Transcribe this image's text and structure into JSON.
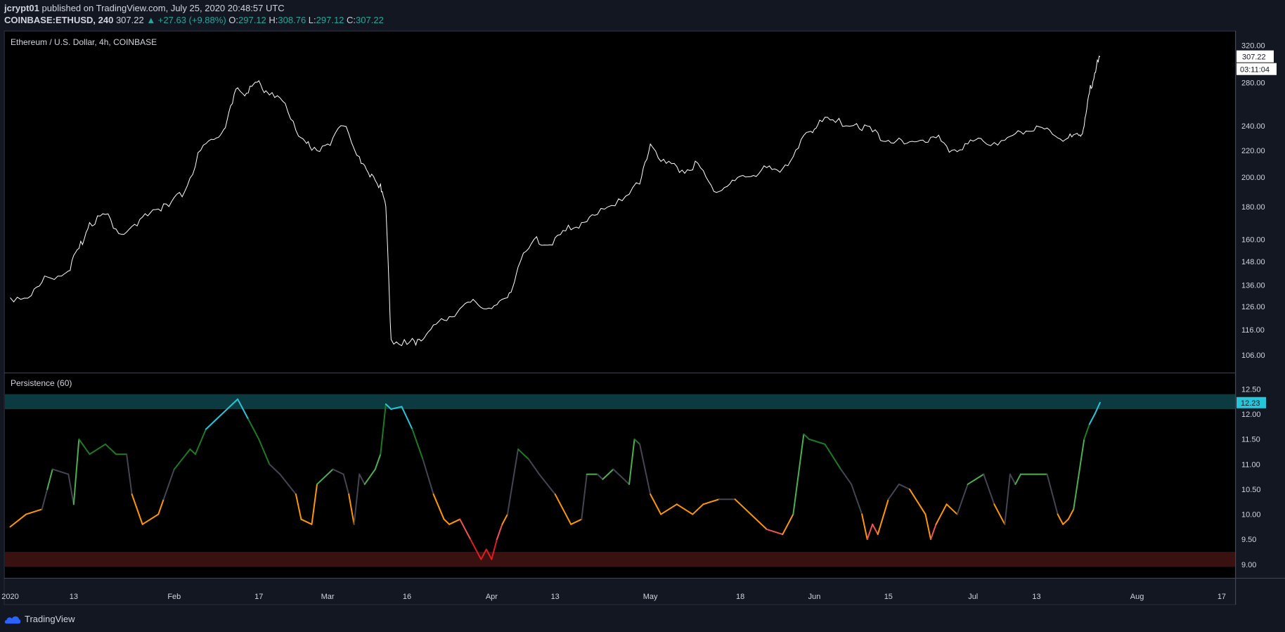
{
  "header": {
    "publisher": "jcrypt01",
    "published_text": "published on TradingView.com, July 25, 2020 20:48:57 UTC",
    "symbol": "COINBASE:ETHUSD, 240",
    "last": "307.22",
    "change": "▲ +27.63 (+9.88%)",
    "o_label": "O:",
    "o": "297.12",
    "h_label": "H:",
    "h": "308.76",
    "l_label": "L:",
    "l": "297.12",
    "c_label": "C:",
    "c": "307.22"
  },
  "footer": {
    "brand": "TradingView"
  },
  "colors": {
    "background": "#000000",
    "price_line": "#ffffff",
    "upper_band": "#0b3b40",
    "lower_band": "#3a1111",
    "cyan": "#26c6da",
    "dark_green": "#1b7a22",
    "green": "#4caf50",
    "gray": "#434651",
    "orange": "#ff9800",
    "red": "#f05454",
    "dark_red": "#e01c1c"
  },
  "chart_data": [
    {
      "type": "line",
      "title": "Ethereum / U.S. Dollar, 4h, COINBASE",
      "y_scale": "log",
      "ylim": [
        100,
        322
      ],
      "y_ticks": [
        "320.00",
        "280.00",
        "240.00",
        "220.00",
        "200.00",
        "180.00",
        "160.00",
        "148.00",
        "136.00",
        "126.00",
        "116.00",
        "106.00"
      ],
      "last_value_label": "307.22",
      "countdown_label": "03:11:04",
      "series": [
        {
          "x": [
            "2020-01-01",
            "2020-01-05",
            "2020-01-08",
            "2020-01-12",
            "2020-01-14",
            "2020-01-16",
            "2020-01-19",
            "2020-01-22",
            "2020-01-25",
            "2020-01-28",
            "2020-01-31",
            "2020-02-03",
            "2020-02-06",
            "2020-02-09",
            "2020-02-11",
            "2020-02-13",
            "2020-02-15",
            "2020-02-17",
            "2020-02-19",
            "2020-02-22",
            "2020-02-25",
            "2020-02-27",
            "2020-03-01",
            "2020-03-04",
            "2020-03-07",
            "2020-03-09",
            "2020-03-11",
            "2020-03-12",
            "2020-03-13",
            "2020-03-16",
            "2020-03-18",
            "2020-03-20",
            "2020-03-23",
            "2020-03-26",
            "2020-03-29",
            "2020-04-01",
            "2020-04-04",
            "2020-04-06",
            "2020-04-09",
            "2020-04-12",
            "2020-04-15",
            "2020-04-18",
            "2020-04-21",
            "2020-04-25",
            "2020-04-29",
            "2020-05-01",
            "2020-05-04",
            "2020-05-07",
            "2020-05-10",
            "2020-05-13",
            "2020-05-16",
            "2020-05-19",
            "2020-05-22",
            "2020-05-25",
            "2020-05-28",
            "2020-05-31",
            "2020-06-02",
            "2020-06-05",
            "2020-06-09",
            "2020-06-12",
            "2020-06-15",
            "2020-06-18",
            "2020-06-21",
            "2020-06-24",
            "2020-06-27",
            "2020-06-30",
            "2020-07-03",
            "2020-07-07",
            "2020-07-10",
            "2020-07-13",
            "2020-07-16",
            "2020-07-19",
            "2020-07-21",
            "2020-07-22",
            "2020-07-23",
            "2020-07-24",
            "2020-07-25"
          ],
          "values": [
            130,
            131,
            140,
            143,
            155,
            170,
            175,
            163,
            168,
            178,
            180,
            190,
            220,
            230,
            245,
            275,
            270,
            282,
            268,
            260,
            230,
            220,
            225,
            240,
            215,
            200,
            195,
            180,
            112,
            110,
            112,
            115,
            120,
            125,
            128,
            125,
            130,
            145,
            160,
            157,
            165,
            170,
            175,
            185,
            195,
            225,
            210,
            205,
            210,
            190,
            195,
            200,
            205,
            205,
            215,
            235,
            245,
            243,
            242,
            235,
            228,
            225,
            228,
            230,
            220,
            225,
            227,
            228,
            235,
            240,
            233,
            230,
            232,
            240,
            270,
            290,
            307.22
          ]
        }
      ]
    },
    {
      "type": "line",
      "title": "Persistence (60)",
      "ylim": [
        8.8,
        12.62
      ],
      "y_ticks": [
        "12.50",
        "12.00",
        "11.50",
        "11.00",
        "10.50",
        "10.00",
        "9.50",
        "9.00"
      ],
      "bands": [
        [
          12.1,
          12.4
        ],
        [
          8.95,
          9.25
        ]
      ],
      "last_value_label": "12.23",
      "series": [
        {
          "x": [
            "2020-01-01",
            "2020-01-04",
            "2020-01-07",
            "2020-01-08",
            "2020-01-09",
            "2020-01-12",
            "2020-01-13",
            "2020-01-14",
            "2020-01-16",
            "2020-01-19",
            "2020-01-21",
            "2020-01-23",
            "2020-01-24",
            "2020-01-26",
            "2020-01-29",
            "2020-01-30",
            "2020-02-01",
            "2020-02-04",
            "2020-02-05",
            "2020-02-07",
            "2020-02-09",
            "2020-02-13",
            "2020-02-15",
            "2020-02-17",
            "2020-02-19",
            "2020-02-21",
            "2020-02-24",
            "2020-02-25",
            "2020-02-27",
            "2020-02-28",
            "2020-03-02",
            "2020-03-04",
            "2020-03-05",
            "2020-03-06",
            "2020-03-07",
            "2020-03-08",
            "2020-03-10",
            "2020-03-11",
            "2020-03-12",
            "2020-03-13",
            "2020-03-15",
            "2020-03-17",
            "2020-03-19",
            "2020-03-21",
            "2020-03-23",
            "2020-03-24",
            "2020-03-26",
            "2020-03-28",
            "2020-03-30",
            "2020-03-31",
            "2020-04-01",
            "2020-04-02",
            "2020-04-03",
            "2020-04-04",
            "2020-04-06",
            "2020-04-07",
            "2020-04-08",
            "2020-04-10",
            "2020-04-13",
            "2020-04-16",
            "2020-04-18",
            "2020-04-19",
            "2020-04-21",
            "2020-04-22",
            "2020-04-24",
            "2020-04-27",
            "2020-04-28",
            "2020-04-29",
            "2020-05-01",
            "2020-05-03",
            "2020-05-06",
            "2020-05-09",
            "2020-05-11",
            "2020-05-14",
            "2020-05-17",
            "2020-05-20",
            "2020-05-23",
            "2020-05-26",
            "2020-05-28",
            "2020-05-30",
            "2020-05-31",
            "2020-06-03",
            "2020-06-06",
            "2020-06-08",
            "2020-06-10",
            "2020-06-11",
            "2020-06-12",
            "2020-06-13",
            "2020-06-15",
            "2020-06-17",
            "2020-06-19",
            "2020-06-22",
            "2020-06-23",
            "2020-06-24",
            "2020-06-26",
            "2020-06-28",
            "2020-06-30",
            "2020-07-03",
            "2020-07-05",
            "2020-07-07",
            "2020-07-08",
            "2020-07-09",
            "2020-07-10",
            "2020-07-13",
            "2020-07-15",
            "2020-07-17",
            "2020-07-18",
            "2020-07-19",
            "2020-07-20",
            "2020-07-22",
            "2020-07-23",
            "2020-07-24",
            "2020-07-25"
          ],
          "values": [
            9.75,
            10.0,
            10.1,
            10.5,
            10.9,
            10.8,
            10.2,
            11.5,
            11.2,
            11.4,
            11.2,
            11.2,
            10.4,
            9.8,
            10.0,
            10.3,
            10.9,
            11.3,
            11.2,
            11.7,
            11.9,
            12.3,
            11.9,
            11.5,
            11.0,
            10.8,
            10.4,
            9.9,
            9.8,
            10.6,
            10.9,
            10.8,
            10.4,
            9.8,
            10.8,
            10.6,
            10.9,
            11.2,
            12.2,
            12.1,
            12.15,
            11.7,
            11.1,
            10.4,
            9.9,
            9.8,
            9.9,
            9.5,
            9.1,
            9.3,
            9.1,
            9.5,
            9.8,
            10.0,
            11.3,
            11.2,
            11.1,
            10.8,
            10.4,
            9.8,
            9.9,
            10.8,
            10.8,
            10.7,
            10.9,
            10.6,
            11.5,
            11.4,
            10.4,
            10.0,
            10.2,
            10.0,
            10.2,
            10.3,
            10.3,
            10.0,
            9.7,
            9.6,
            10.0,
            11.6,
            11.5,
            11.4,
            10.9,
            10.6,
            10.0,
            9.5,
            9.8,
            9.6,
            10.3,
            10.6,
            10.5,
            10.0,
            9.5,
            9.8,
            10.2,
            10.0,
            10.6,
            10.8,
            10.2,
            9.8,
            10.8,
            10.6,
            10.8,
            10.8,
            10.8,
            10.0,
            9.8,
            9.9,
            10.1,
            11.5,
            11.8,
            12.0,
            12.23
          ]
        }
      ]
    }
  ],
  "x_axis": {
    "ticks": [
      {
        "label": "2020",
        "x": "2020-01-01"
      },
      {
        "label": "13",
        "x": "2020-01-13"
      },
      {
        "label": "Feb",
        "x": "2020-02-01"
      },
      {
        "label": "17",
        "x": "2020-02-17"
      },
      {
        "label": "Mar",
        "x": "2020-03-01"
      },
      {
        "label": "16",
        "x": "2020-03-16"
      },
      {
        "label": "Apr",
        "x": "2020-04-01"
      },
      {
        "label": "13",
        "x": "2020-04-13"
      },
      {
        "label": "May",
        "x": "2020-05-01"
      },
      {
        "label": "18",
        "x": "2020-05-18"
      },
      {
        "label": "Jun",
        "x": "2020-06-01"
      },
      {
        "label": "15",
        "x": "2020-06-15"
      },
      {
        "label": "Jul",
        "x": "2020-07-01"
      },
      {
        "label": "13",
        "x": "2020-07-13"
      },
      {
        "label": "Aug",
        "x": "2020-08-01"
      },
      {
        "label": "17",
        "x": "2020-08-17"
      }
    ],
    "range": [
      "2019-12-31",
      "2020-08-19"
    ]
  }
}
